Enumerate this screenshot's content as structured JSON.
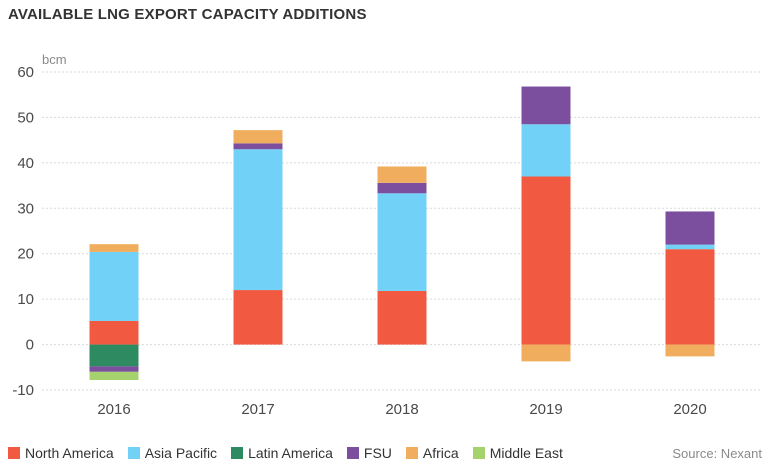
{
  "chart_data": {
    "type": "bar",
    "stacked": true,
    "title": "AVAILABLE LNG EXPORT CAPACITY ADDITIONS",
    "ylabel": "bcm",
    "xlabel": "",
    "ylim": [
      -10,
      60
    ],
    "yticks": [
      -10,
      0,
      10,
      20,
      30,
      40,
      50,
      60
    ],
    "grid": true,
    "legend_position": "bottom-left",
    "categories": [
      "2016",
      "2017",
      "2018",
      "2019",
      "2020"
    ],
    "series": [
      {
        "name": "North America",
        "color": "#F15A40",
        "values": [
          5.2,
          12.0,
          11.8,
          37.0,
          21.0
        ]
      },
      {
        "name": "Asia Pacific",
        "color": "#72D1F7",
        "values": [
          15.2,
          31.0,
          21.5,
          11.5,
          1.0
        ]
      },
      {
        "name": "Latin America",
        "color": "#2E8A60",
        "values": [
          -4.8,
          0,
          0,
          0,
          0
        ]
      },
      {
        "name": "FSU",
        "color": "#7B4F9E",
        "values": [
          -1.2,
          1.3,
          2.3,
          8.3,
          7.3
        ]
      },
      {
        "name": "Africa",
        "color": "#F0AD5E",
        "values": [
          1.7,
          2.9,
          3.6,
          -3.7,
          -2.6
        ]
      },
      {
        "name": "Middle East",
        "color": "#A6D26E",
        "values": [
          -1.8,
          0,
          0,
          0,
          0
        ]
      }
    ],
    "source": "Source: Nexant"
  }
}
